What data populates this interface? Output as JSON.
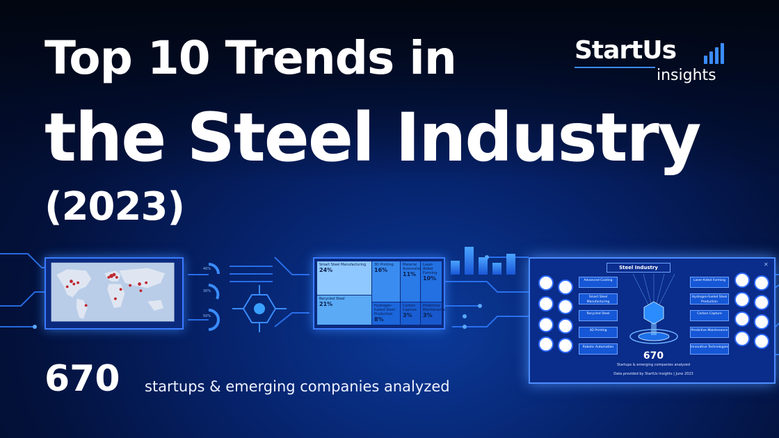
{
  "title": {
    "line1": "Top 10 Trends in",
    "line2": "the Steel Industry",
    "line3": "(2023)"
  },
  "logo": {
    "brand": "StartUs",
    "sub": "insights",
    "bars_icon": "bar-chart-icon"
  },
  "stats": {
    "count": "670",
    "label": "startups & emerging companies analyzed"
  },
  "treemap": {
    "cells": [
      {
        "label": "Smart Steel Manufacturing",
        "value": "24%"
      },
      {
        "label": "3D Printing",
        "value": "16%"
      },
      {
        "label": "Material Automation",
        "value": "11%"
      },
      {
        "label": "Laser-Aided Forming",
        "value": "10%"
      },
      {
        "label": "Recycled Steel",
        "value": "21%"
      },
      {
        "label": "Hydrogen-fueled Steel Production",
        "value": "8%"
      },
      {
        "label": "Carbon Capture",
        "value": "3%"
      },
      {
        "label": "Predictive Maintenance",
        "value": "3%"
      }
    ]
  },
  "gauges": [
    "40%",
    "30%",
    "50%"
  ],
  "infographic": {
    "title": "Steel Industry",
    "trends_left": [
      "Advanced Coating",
      "Smart Steel Manufacturing",
      "Recycled Steel",
      "3D Printing",
      "Robotic Automation"
    ],
    "trends_right": [
      "Laser-Aided Forming",
      "Hydrogen-fueled Steel Production",
      "Carbon Capture",
      "Predictive Maintenance",
      "Innovative Technologies"
    ],
    "count": "670",
    "count_label": "Startups & emerging companies analyzed",
    "footer": "Data provided by StartUs insights | June 2023"
  },
  "colors": {
    "accent": "#3a7bff",
    "background": "#06226a",
    "treemap_light": "#8fc8ff",
    "treemap_dark": "#1a66e6"
  }
}
